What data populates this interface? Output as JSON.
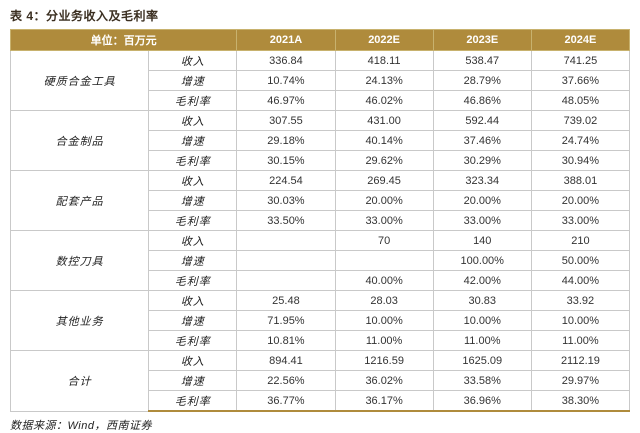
{
  "title": "表 4：分业务收入及毛利率",
  "colors": {
    "header_gold": "#af8b3c",
    "border_gray": "#c9c9c9",
    "title_text": "#3a2e20"
  },
  "table": {
    "unit_header": "单位：百万元",
    "year_headers": [
      "2021A",
      "2022E",
      "2023E",
      "2024E"
    ],
    "groups": [
      {
        "name": "硬质合金工具",
        "rows": [
          {
            "metric": "收入",
            "values": [
              "336.84",
              "418.11",
              "538.47",
              "741.25"
            ]
          },
          {
            "metric": "增速",
            "values": [
              "10.74%",
              "24.13%",
              "28.79%",
              "37.66%"
            ]
          },
          {
            "metric": "毛利率",
            "values": [
              "46.97%",
              "46.02%",
              "46.86%",
              "48.05%"
            ]
          }
        ]
      },
      {
        "name": "合金制品",
        "rows": [
          {
            "metric": "收入",
            "values": [
              "307.55",
              "431.00",
              "592.44",
              "739.02"
            ]
          },
          {
            "metric": "增速",
            "values": [
              "29.18%",
              "40.14%",
              "37.46%",
              "24.74%"
            ]
          },
          {
            "metric": "毛利率",
            "values": [
              "30.15%",
              "29.62%",
              "30.29%",
              "30.94%"
            ]
          }
        ]
      },
      {
        "name": "配套产品",
        "rows": [
          {
            "metric": "收入",
            "values": [
              "224.54",
              "269.45",
              "323.34",
              "388.01"
            ]
          },
          {
            "metric": "增速",
            "values": [
              "30.03%",
              "20.00%",
              "20.00%",
              "20.00%"
            ]
          },
          {
            "metric": "毛利率",
            "values": [
              "33.50%",
              "33.00%",
              "33.00%",
              "33.00%"
            ]
          }
        ]
      },
      {
        "name": "数控刀具",
        "rows": [
          {
            "metric": "收入",
            "values": [
              "",
              "70",
              "140",
              "210"
            ]
          },
          {
            "metric": "增速",
            "values": [
              "",
              "",
              "100.00%",
              "50.00%"
            ]
          },
          {
            "metric": "毛利率",
            "values": [
              "",
              "40.00%",
              "42.00%",
              "44.00%"
            ]
          }
        ]
      },
      {
        "name": "其他业务",
        "rows": [
          {
            "metric": "收入",
            "values": [
              "25.48",
              "28.03",
              "30.83",
              "33.92"
            ]
          },
          {
            "metric": "增速",
            "values": [
              "71.95%",
              "10.00%",
              "10.00%",
              "10.00%"
            ]
          },
          {
            "metric": "毛利率",
            "values": [
              "10.81%",
              "11.00%",
              "11.00%",
              "11.00%"
            ]
          }
        ]
      },
      {
        "name": "合计",
        "rows": [
          {
            "metric": "收入",
            "values": [
              "894.41",
              "1216.59",
              "1625.09",
              "2112.19"
            ]
          },
          {
            "metric": "增速",
            "values": [
              "22.56%",
              "36.02%",
              "33.58%",
              "29.97%"
            ]
          },
          {
            "metric": "毛利率",
            "values": [
              "36.77%",
              "36.17%",
              "36.96%",
              "38.30%"
            ]
          }
        ]
      }
    ]
  },
  "footer": {
    "source": "数据来源：Wind，西南证券"
  }
}
